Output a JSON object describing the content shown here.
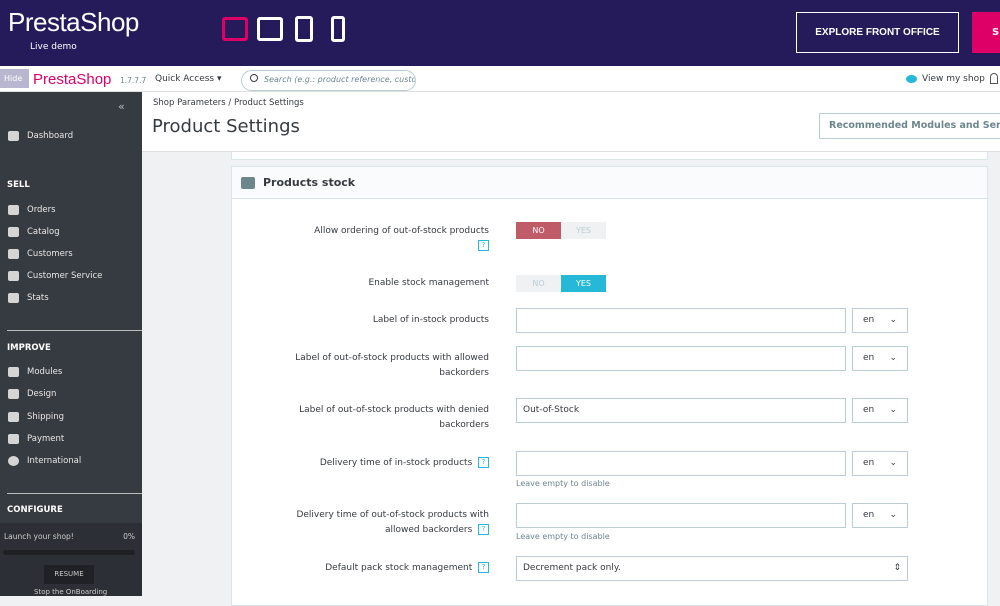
{
  "topbar": {
    "logo": "PrestaShop",
    "subtitle": "Live demo",
    "explore_label": "EXPLORE FRONT OFFICE",
    "pink_label": "S",
    "devices": [
      "desktop-icon",
      "tablet-landscape-icon",
      "tablet-portrait-icon",
      "mobile-icon"
    ],
    "colors": {
      "bg": "#251b5b",
      "accent": "#df0067"
    }
  },
  "header": {
    "logo": "PrestaShop",
    "hide": "Hide",
    "version": "1.7.7.7",
    "quick_access": "Quick Access ▾",
    "search_placeholder": "Search (e.g.: product reference, custome",
    "view_shop": "View my shop"
  },
  "sidebar": {
    "collapse": "«",
    "dashboard": "Dashboard",
    "sell": "SELL",
    "sell_items": [
      "Orders",
      "Catalog",
      "Customers",
      "Customer Service",
      "Stats"
    ],
    "improve": "IMPROVE",
    "improve_items": [
      "Modules",
      "Design",
      "Shipping",
      "Payment",
      "International"
    ],
    "configure": "CONFIGURE",
    "launch": "Launch your shop!",
    "progress": "0%",
    "resume": "RESUME",
    "stop": "Stop the OnBoarding"
  },
  "page": {
    "breadcrumb_parent": "Shop Parameters",
    "breadcrumb_current": "Product Settings",
    "title": "Product Settings",
    "recommended": "Recommended Modules and Services"
  },
  "card": {
    "title": "Products stock",
    "rows": [
      {
        "label": "Allow ordering of out-of-stock products",
        "no": "NO",
        "yes": "YES",
        "value": "NO"
      },
      {
        "label": "Enable stock management",
        "no": "NO",
        "yes": "YES",
        "value": "YES"
      },
      {
        "label": "Label of in-stock products",
        "value": "",
        "lang": "en"
      },
      {
        "label": "Label of out-of-stock products with allowed backorders",
        "value": "",
        "lang": "en"
      },
      {
        "label": "Label of out-of-stock products with denied backorders",
        "value": "Out-of-Stock",
        "lang": "en"
      },
      {
        "label": "Delivery time of in-stock products",
        "value": "",
        "lang": "en",
        "hint": "Leave empty to disable"
      },
      {
        "label": "Delivery time of out-of-stock products with allowed backorders",
        "value": "",
        "lang": "en",
        "hint": "Leave empty to disable"
      },
      {
        "label": "Default pack stock management",
        "value": "Decrement pack only."
      }
    ]
  }
}
